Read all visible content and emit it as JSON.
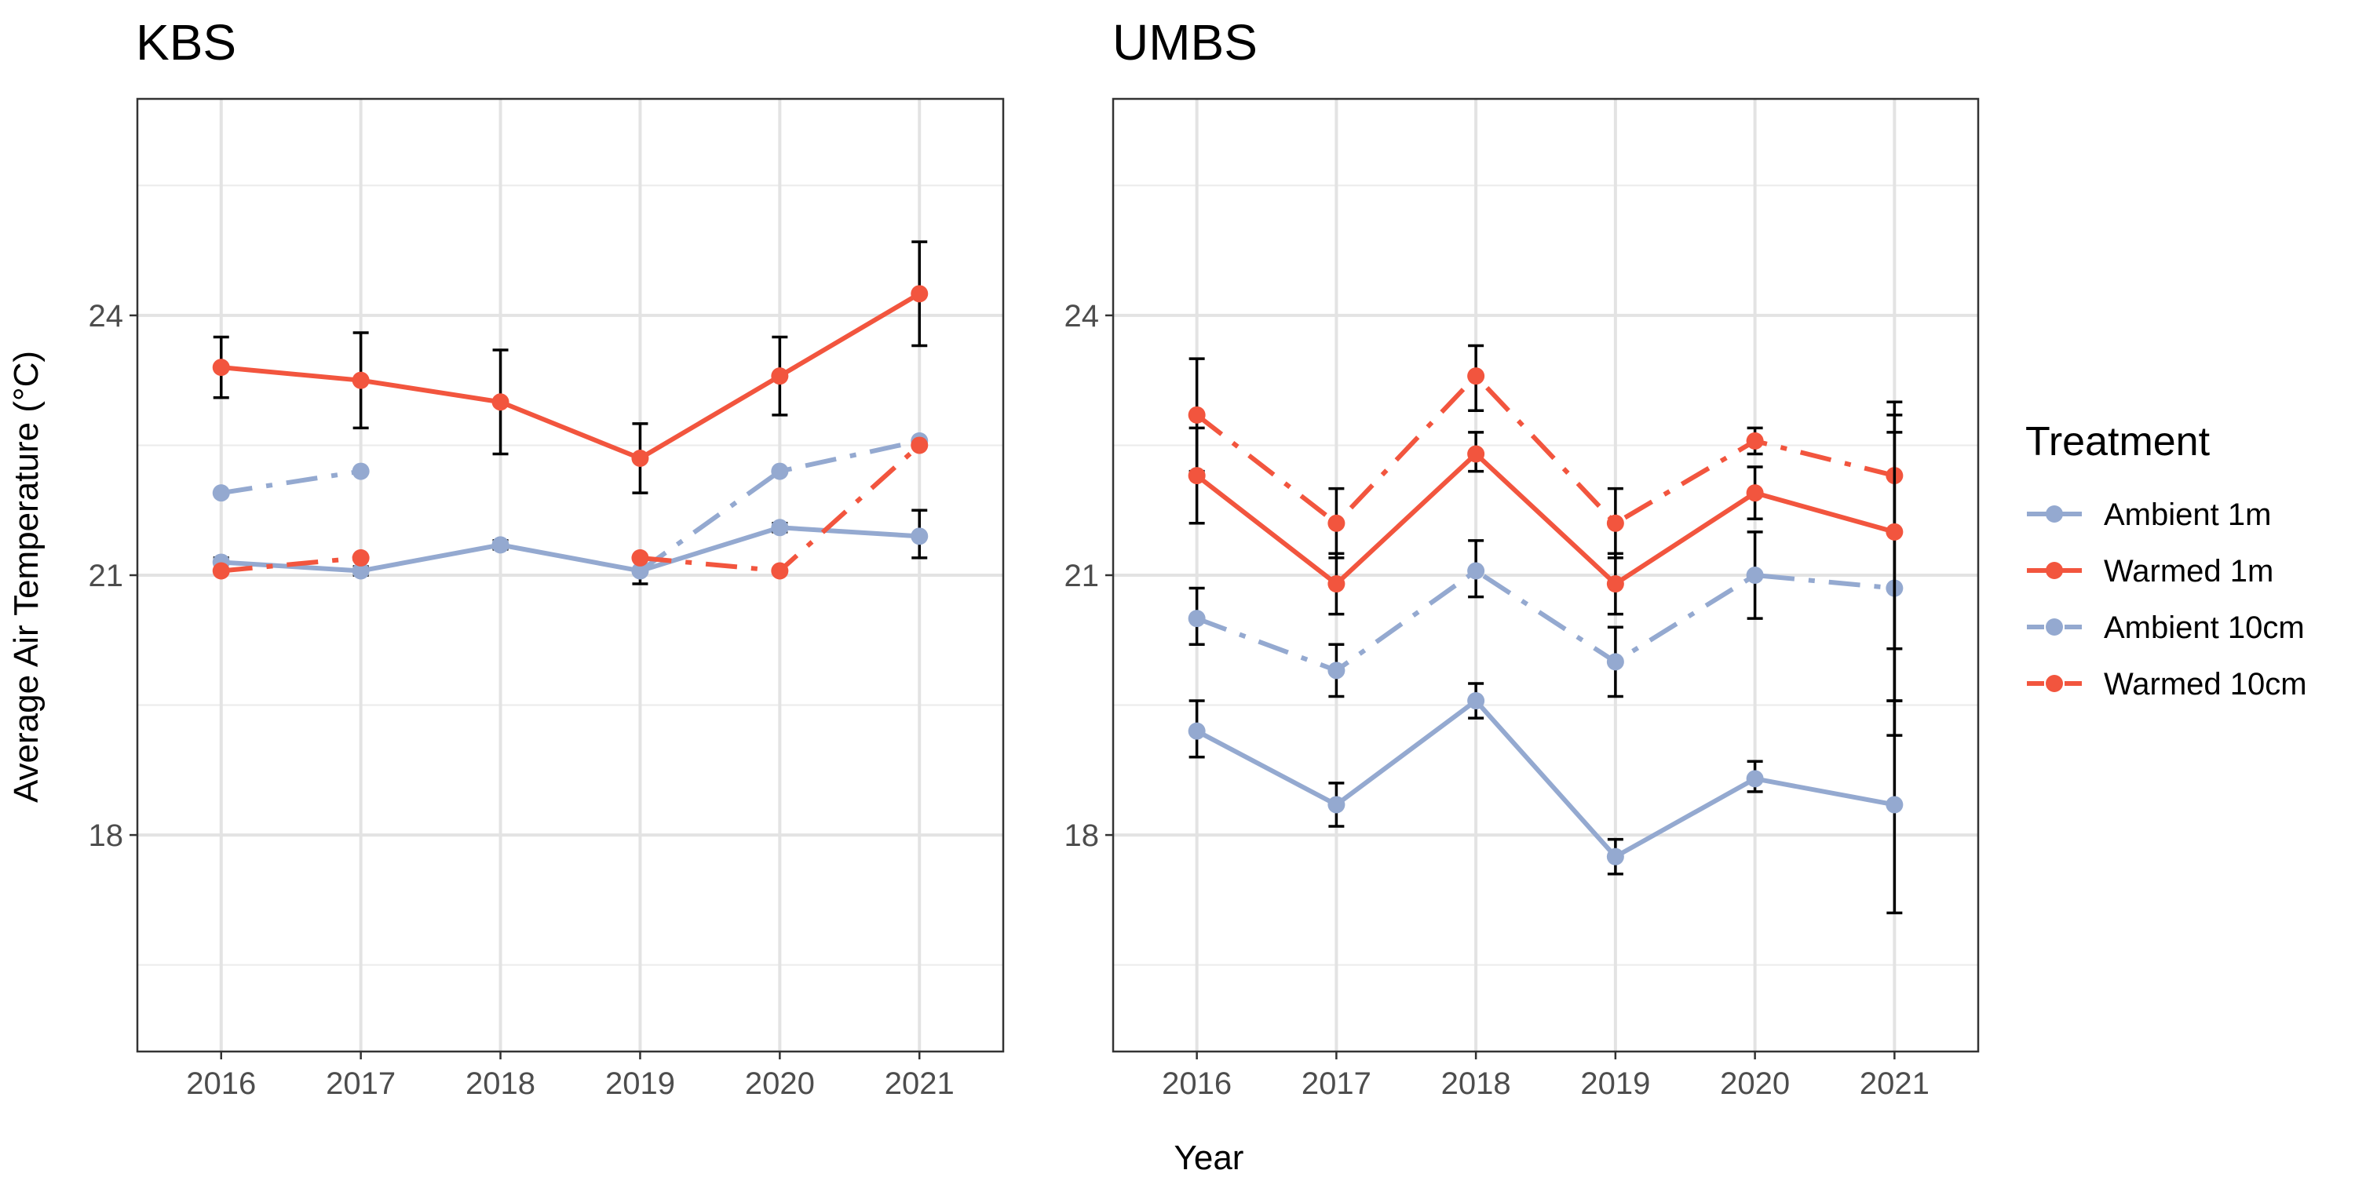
{
  "chart_data": {
    "type": "line",
    "ylabel": "Average Air Temperature (°C)",
    "xlabel": "Year",
    "x": [
      2016,
      2017,
      2018,
      2019,
      2020,
      2021
    ],
    "ylim": [
      15.5,
      26.5
    ],
    "yticks": [
      18,
      21,
      24
    ],
    "grid": true,
    "legend": {
      "title": "Treatment",
      "placement": "right",
      "entries": [
        {
          "name": "Ambient 1m",
          "color": "#94A9D0",
          "dash": "solid"
        },
        {
          "name": "Warmed 1m",
          "color": "#F2553E",
          "dash": "solid"
        },
        {
          "name": "Ambient 10cm",
          "color": "#94A9D0",
          "dash": "dashdot"
        },
        {
          "name": "Warmed 10cm",
          "color": "#F2553E",
          "dash": "dashdot"
        }
      ]
    },
    "panels": [
      {
        "title": "KBS",
        "series": [
          {
            "name": "Ambient 1m",
            "values": [
              21.15,
              21.05,
              21.35,
              21.05,
              21.55,
              21.45
            ],
            "err_low": [
              21.05,
              21.0,
              21.3,
              20.9,
              21.5,
              21.2
            ],
            "err_high": [
              21.2,
              21.1,
              21.4,
              21.2,
              21.6,
              21.75
            ]
          },
          {
            "name": "Warmed 1m",
            "values": [
              23.4,
              23.25,
              23.0,
              22.35,
              23.3,
              24.25
            ],
            "err_low": [
              23.05,
              22.7,
              22.4,
              21.95,
              22.85,
              23.65
            ],
            "err_high": [
              23.75,
              23.8,
              23.6,
              22.75,
              23.75,
              24.85
            ]
          },
          {
            "name": "Ambient 10cm",
            "values": [
              21.95,
              22.2,
              null,
              21.05,
              22.2,
              22.55
            ],
            "err_low": [
              null,
              null,
              null,
              null,
              null,
              null
            ],
            "err_high": [
              null,
              null,
              null,
              null,
              null,
              null
            ]
          },
          {
            "name": "Warmed 10cm",
            "values": [
              21.05,
              21.2,
              null,
              21.2,
              21.05,
              22.5
            ],
            "err_low": [
              null,
              null,
              null,
              null,
              null,
              null
            ],
            "err_high": [
              null,
              null,
              null,
              null,
              null,
              null
            ]
          }
        ]
      },
      {
        "title": "UMBS",
        "series": [
          {
            "name": "Ambient 1m",
            "values": [
              19.2,
              18.35,
              19.55,
              17.75,
              18.65,
              18.35
            ],
            "err_low": [
              18.9,
              18.1,
              19.35,
              17.55,
              18.5,
              17.1
            ],
            "err_high": [
              19.55,
              18.6,
              19.75,
              17.95,
              18.85,
              19.55
            ]
          },
          {
            "name": "Warmed 1m",
            "values": [
              22.15,
              20.9,
              22.4,
              20.9,
              21.95,
              21.5
            ],
            "err_low": [
              21.6,
              20.55,
              22.2,
              20.55,
              21.65,
              19.15
            ],
            "err_high": [
              22.7,
              21.25,
              22.65,
              21.25,
              22.25,
              22.85
            ]
          },
          {
            "name": "Ambient 10cm",
            "values": [
              20.5,
              19.9,
              21.05,
              20.0,
              21.0,
              20.85
            ],
            "err_low": [
              20.2,
              19.6,
              20.75,
              19.6,
              20.5,
              20.15
            ],
            "err_high": [
              20.85,
              20.2,
              21.4,
              20.4,
              21.5,
              22.65
            ]
          },
          {
            "name": "Warmed 10cm",
            "values": [
              22.85,
              21.6,
              23.3,
              21.6,
              22.55,
              22.15
            ],
            "err_low": [
              22.2,
              21.2,
              22.9,
              21.2,
              22.4,
              19.55
            ],
            "err_high": [
              23.5,
              22.0,
              23.65,
              22.0,
              22.7,
              23.0
            ]
          }
        ]
      }
    ]
  }
}
